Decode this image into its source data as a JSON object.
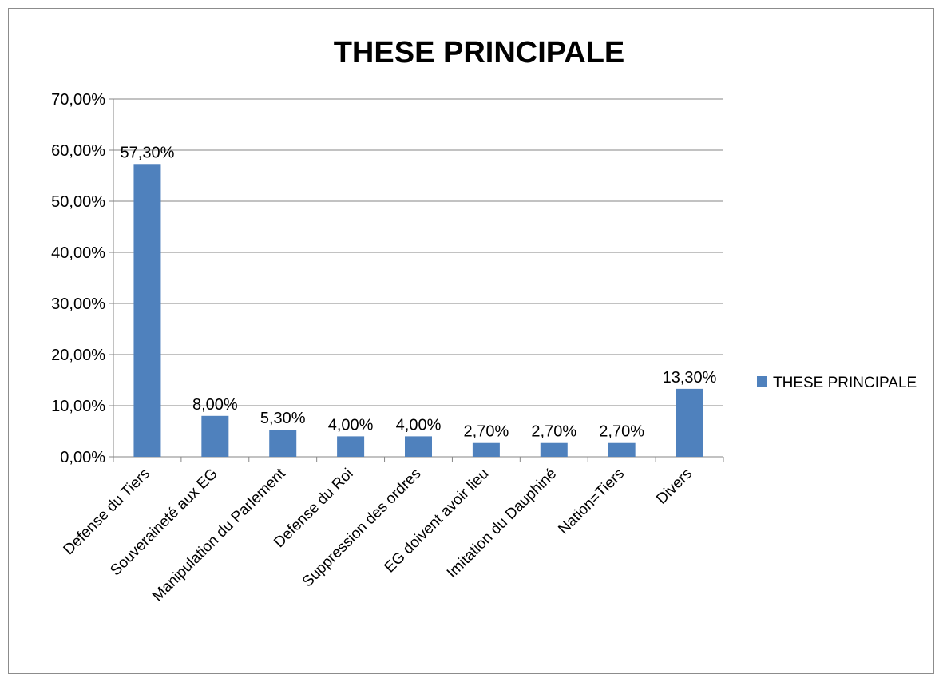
{
  "chart_data": {
    "type": "bar",
    "title": "THESE PRINCIPALE",
    "xlabel": "",
    "ylabel": "",
    "ylim": [
      0,
      70
    ],
    "yticks": [
      0,
      10,
      20,
      30,
      40,
      50,
      60,
      70
    ],
    "ytick_labels": [
      "0,00%",
      "10,00%",
      "20,00%",
      "30,00%",
      "40,00%",
      "50,00%",
      "60,00%",
      "70,00%"
    ],
    "grid": true,
    "legend_position": "right",
    "categories": [
      "Defense du Tiers",
      "Souveraineté aux EG",
      "Manipulation du Parlement",
      "Defense du Roi",
      "Suppression des ordres",
      "EG doivent avoir lieu",
      "Imitation  du Dauphiné",
      "Nation=Tiers",
      "Divers"
    ],
    "series": [
      {
        "name": "THESE PRINCIPALE",
        "color": "#4f81bd",
        "values": [
          57.3,
          8.0,
          5.3,
          4.0,
          4.0,
          2.7,
          2.7,
          2.7,
          13.3
        ],
        "labels": [
          "57,30%",
          "8,00%",
          "5,30%",
          "4,00%",
          "4,00%",
          "2,70%",
          "2,70%",
          "2,70%",
          "13,30%"
        ]
      }
    ]
  }
}
